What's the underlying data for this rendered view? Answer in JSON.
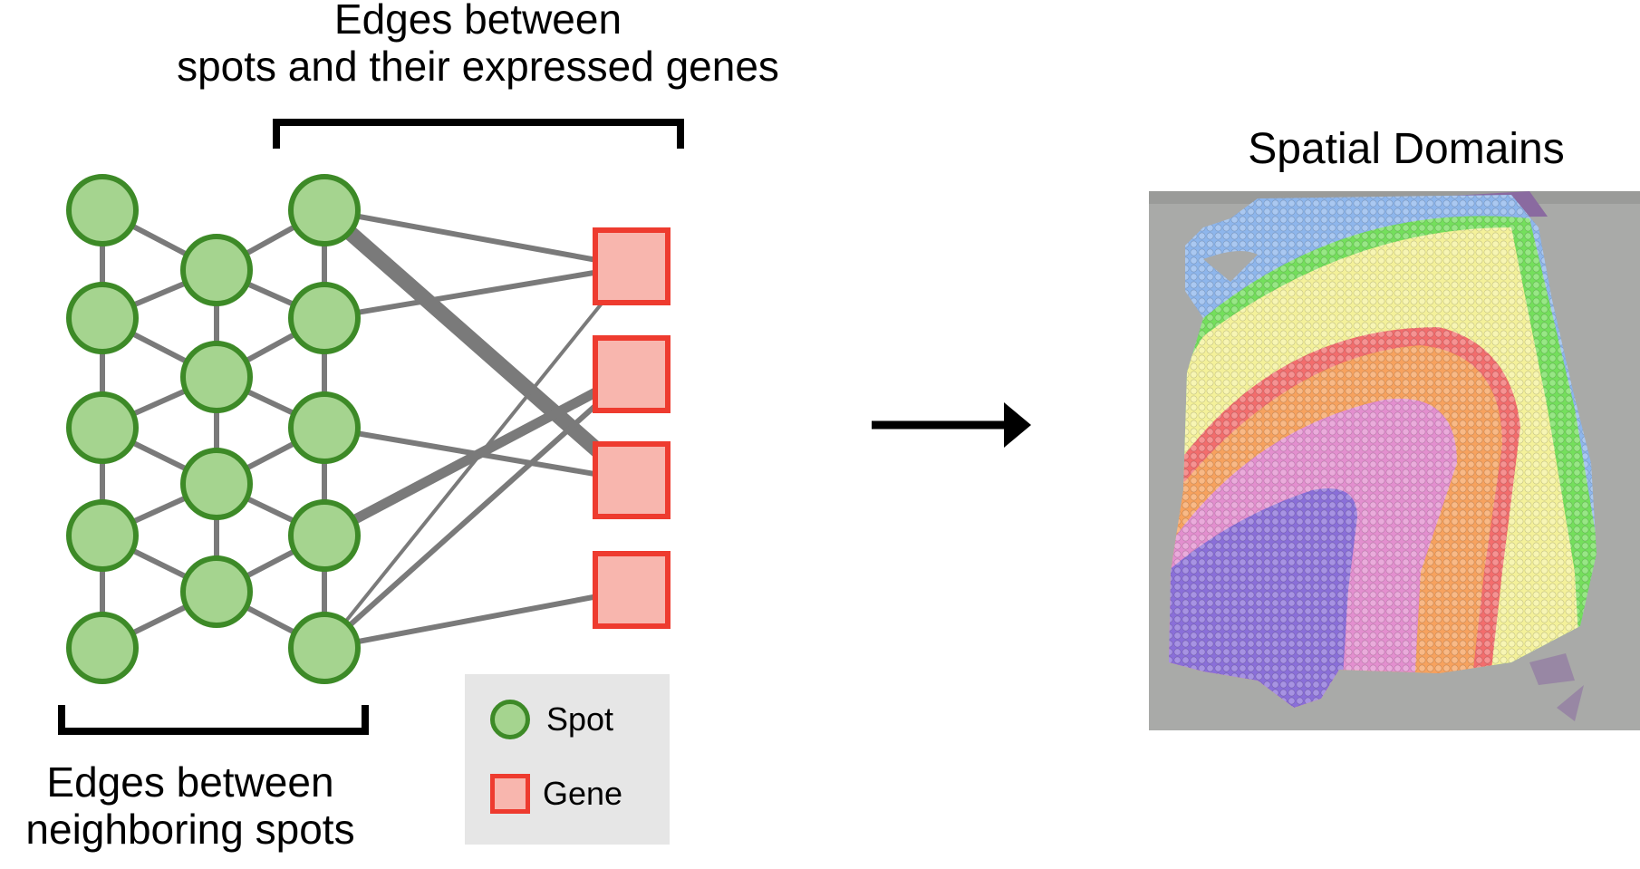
{
  "labels": {
    "edges_spot_gene": "Edges between\nspots and their expressed genes",
    "edges_neighbor": "Edges between\nneighboring spots",
    "spatial_domains": "Spatial Domains"
  },
  "legend": {
    "spot_label": "Spot",
    "gene_label": "Gene"
  },
  "colors": {
    "spot_fill": "#a5d48f",
    "spot_stroke": "#3d8a27",
    "gene_fill": "#f8b6ae",
    "gene_stroke": "#ee3b2f",
    "edge": "#7a7a7a",
    "arrow": "#000000",
    "bracket": "#000000",
    "legend_bg": "#e6e6e6",
    "tissue_bg": "#a9aaa8"
  },
  "graph": {
    "spots": [
      "s1",
      "s2",
      "s3",
      "s4",
      "s5",
      "s6",
      "s7",
      "s8",
      "s9",
      "s10",
      "s11",
      "s12",
      "s13",
      "s14"
    ],
    "genes": [
      "g1",
      "g2",
      "g3",
      "g4"
    ]
  },
  "domains": [
    {
      "name": "domain-blue",
      "color": "#8eb6ec"
    },
    {
      "name": "domain-green",
      "color": "#74df5c"
    },
    {
      "name": "domain-yellow",
      "color": "#f4f19a"
    },
    {
      "name": "domain-red",
      "color": "#f36d6d"
    },
    {
      "name": "domain-orange",
      "color": "#f7a25e"
    },
    {
      "name": "domain-pink",
      "color": "#e38fcf"
    },
    {
      "name": "domain-purple",
      "color": "#8a6fd9"
    }
  ]
}
